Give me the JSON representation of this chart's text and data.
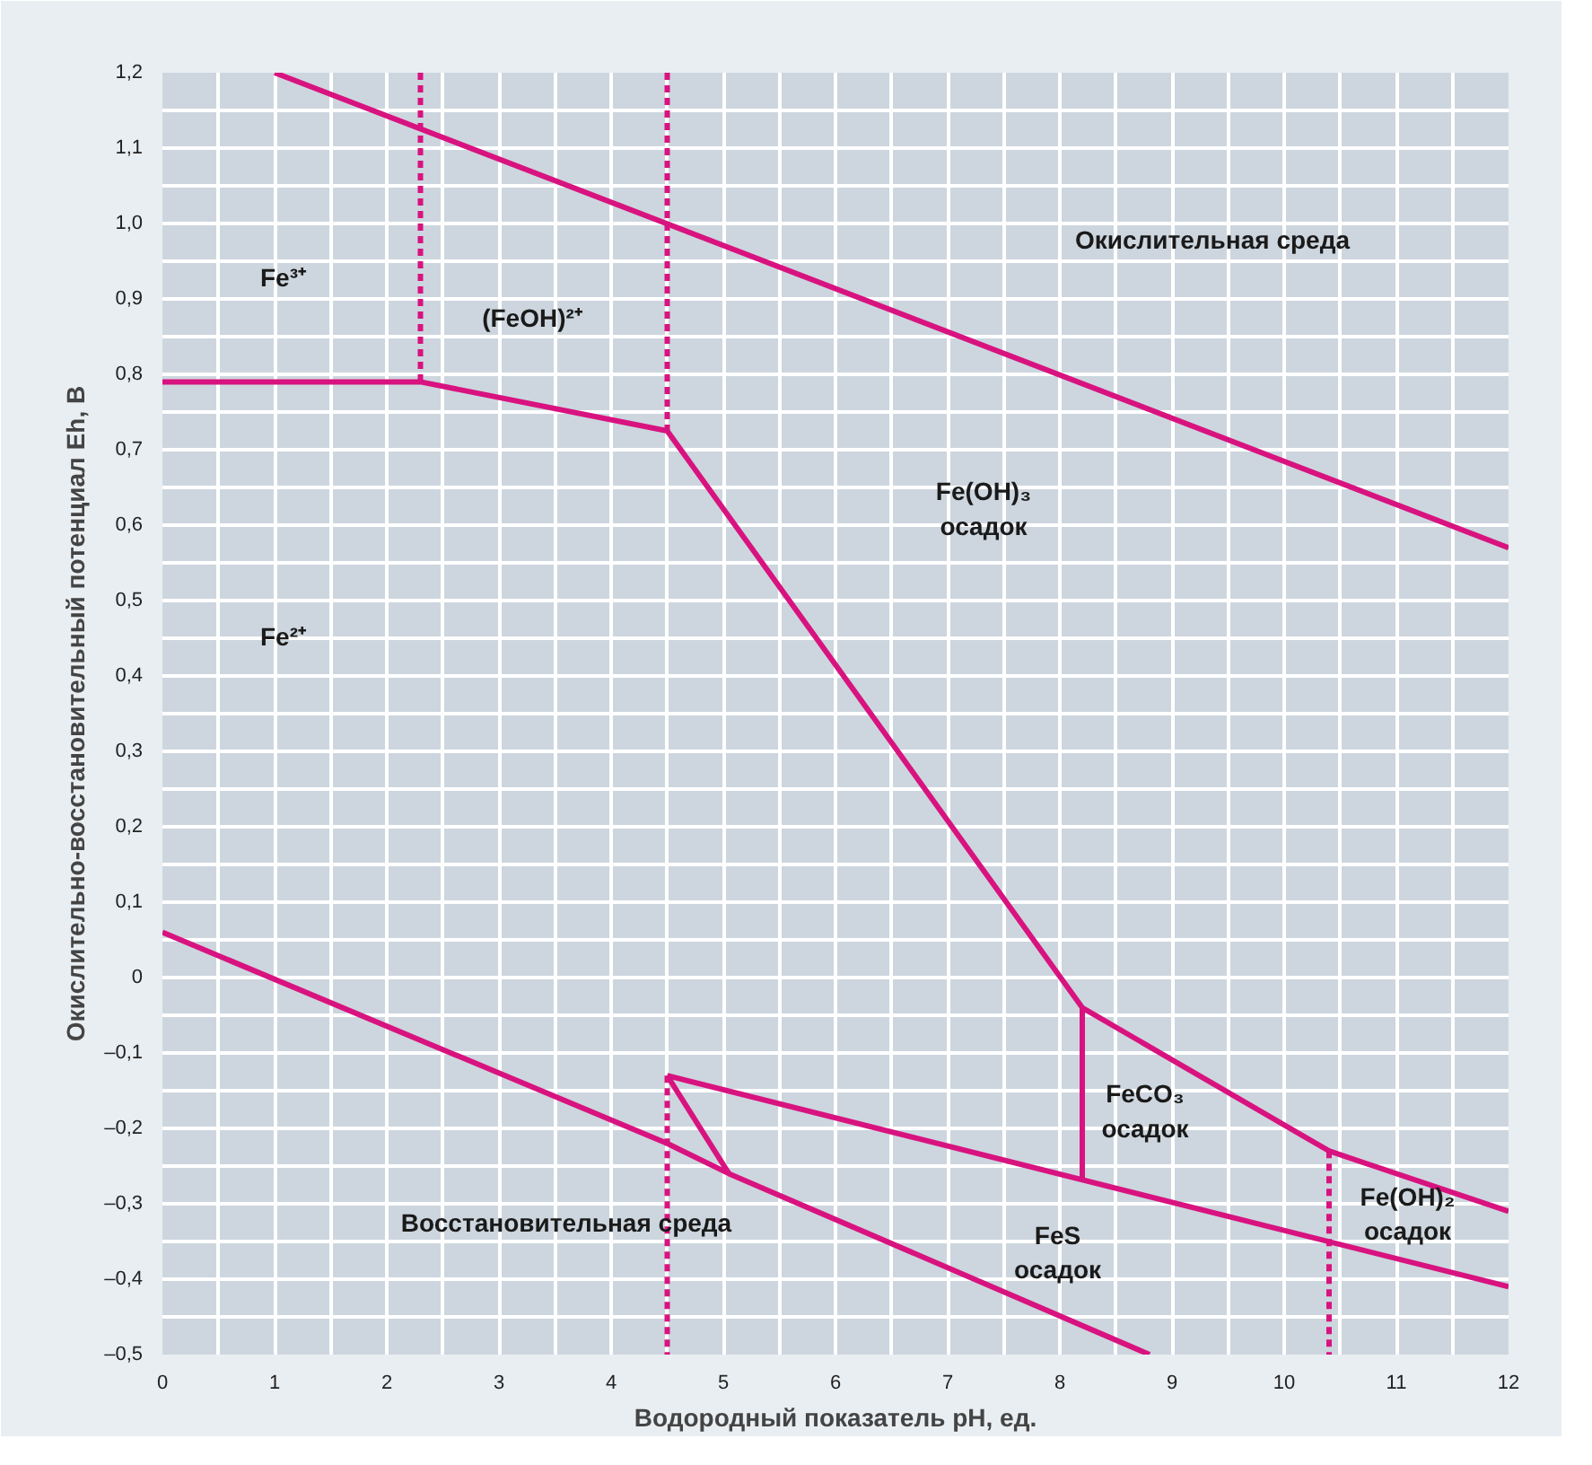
{
  "chart_data": {
    "type": "line",
    "xlabel": "Водородный показатель pH, ед.",
    "ylabel": "Окислительно-восстановительный потенциал Eh, В",
    "xlim": [
      0,
      12
    ],
    "ylim": [
      -0.5,
      1.2
    ],
    "xticks": [
      0,
      1,
      2,
      3,
      4,
      5,
      6,
      7,
      8,
      9,
      10,
      11,
      12
    ],
    "yticks": [
      {
        "value": -0.5,
        "label": "–0,5"
      },
      {
        "value": -0.4,
        "label": "–0,4"
      },
      {
        "value": -0.3,
        "label": "–0,3"
      },
      {
        "value": -0.2,
        "label": "–0,2"
      },
      {
        "value": -0.1,
        "label": "–0,1"
      },
      0,
      {
        "value": 0.1,
        "label": "0,1"
      },
      {
        "value": 0.2,
        "label": "0,2"
      },
      {
        "value": 0.3,
        "label": "0,3"
      },
      {
        "value": 0.4,
        "label": "0,4"
      },
      {
        "value": 0.5,
        "label": "0,5"
      },
      {
        "value": 0.6,
        "label": "0,6"
      },
      {
        "value": 0.7,
        "label": "0,7"
      },
      {
        "value": 0.8,
        "label": "0,8"
      },
      {
        "value": 0.9,
        "label": "0,9"
      },
      {
        "value": 1.0,
        "label": "1,0"
      },
      {
        "value": 1.1,
        "label": "1,1"
      },
      {
        "value": 1.2,
        "label": "1,2"
      }
    ],
    "grid": true,
    "series": [
      {
        "color": "#d8137f",
        "x": [
          1,
          12
        ],
        "values": [
          1.2,
          0.57
        ]
      },
      {
        "color": "#d8137f",
        "x": [
          0,
          4.5,
          5.05,
          8.8
        ],
        "values": [
          0.06,
          -0.22,
          -0.26,
          -0.5
        ]
      },
      {
        "color": "#d8137f",
        "x": [
          0,
          2.3,
          4.5,
          8.2,
          10.4,
          12
        ],
        "values": [
          0.79,
          0.79,
          0.725,
          -0.04,
          -0.23,
          -0.31
        ]
      },
      {
        "color": "#d8137f",
        "x": [
          8.2,
          8.2
        ],
        "values": [
          -0.04,
          -0.27
        ]
      },
      {
        "color": "#d8137f",
        "x": [
          4.5,
          12
        ],
        "values": [
          -0.13,
          -0.41
        ]
      },
      {
        "color": "#d8137f",
        "x": [
          4.5,
          5.05
        ],
        "values": [
          -0.13,
          -0.26
        ]
      },
      {
        "color": "#d8137f",
        "line_style": "dashed",
        "x": [
          2.3,
          2.3
        ],
        "values": [
          1.2,
          0.79
        ]
      },
      {
        "color": "#d8137f",
        "line_style": "dashed",
        "x": [
          4.5,
          4.5
        ],
        "values": [
          1.2,
          0.725
        ]
      },
      {
        "color": "#d8137f",
        "line_style": "dashed",
        "x": [
          4.5,
          4.5
        ],
        "values": [
          -0.13,
          -0.5
        ]
      },
      {
        "color": "#d8137f",
        "line_style": "dashed",
        "x": [
          10.4,
          10.4
        ],
        "values": [
          -0.23,
          -0.5
        ]
      }
    ],
    "annotations": [
      "Окислительная среда",
      "Fe³⁺",
      "(FeOH)²⁺",
      "Fe(OH)₃\nосадок",
      "Fe²⁺",
      "FeCO₃\nосадок",
      "Fe(OH)₂\nосадок",
      "FeS\nосадок",
      "Восстановительная среда"
    ]
  }
}
